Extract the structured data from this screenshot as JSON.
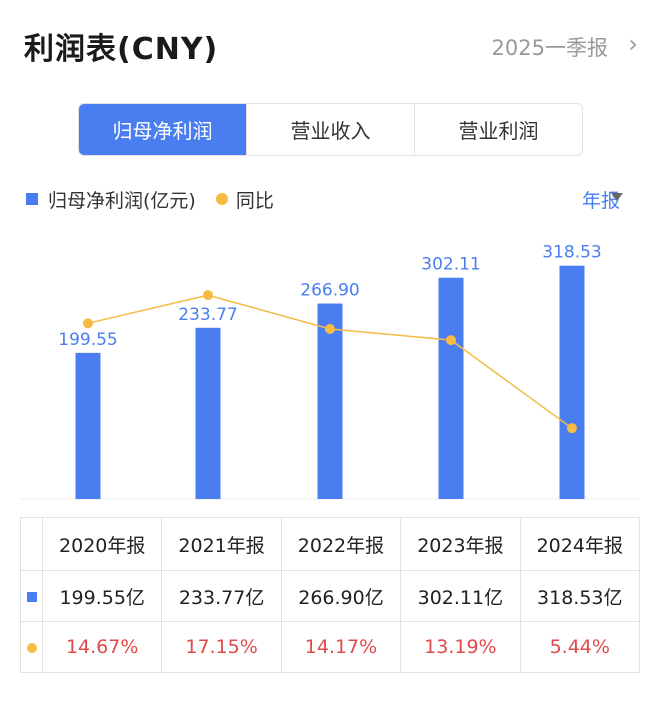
{
  "header": {
    "title": "利润表(CNY)",
    "period": "2025一季报",
    "chevron": "›"
  },
  "tabs": [
    {
      "label": "归母净利润",
      "active": true
    },
    {
      "label": "营业收入",
      "active": false
    },
    {
      "label": "营业利润",
      "active": false
    }
  ],
  "legend": {
    "bar_label": "归母净利润(亿元)",
    "line_label": "同比"
  },
  "annual_dropdown": {
    "label": "年报"
  },
  "colors": {
    "bar": "#4a7ef0",
    "line": "#f5bb42",
    "negative_text": "#e04a4a"
  },
  "chart_data": {
    "type": "bar",
    "categories": [
      "2020年报",
      "2021年报",
      "2022年报",
      "2023年报",
      "2024年报"
    ],
    "series": [
      {
        "name": "归母净利润(亿元)",
        "type": "bar",
        "values": [
          199.55,
          233.77,
          266.9,
          302.11,
          318.53
        ],
        "labels": [
          "199.55",
          "233.77",
          "266.90",
          "302.11",
          "318.53"
        ]
      },
      {
        "name": "同比",
        "type": "line",
        "values": [
          14.67,
          17.15,
          14.17,
          13.19,
          5.44
        ]
      }
    ],
    "ylim": [
      0,
      340
    ],
    "grid": false,
    "legend": "top-left"
  },
  "table": {
    "headers": [
      "2020年报",
      "2021年报",
      "2022年报",
      "2023年报",
      "2024年报"
    ],
    "profit_row": [
      "199.55亿",
      "233.77亿",
      "266.90亿",
      "302.11亿",
      "318.53亿"
    ],
    "yoy_row": [
      "14.67%",
      "17.15%",
      "14.17%",
      "13.19%",
      "5.44%"
    ]
  }
}
